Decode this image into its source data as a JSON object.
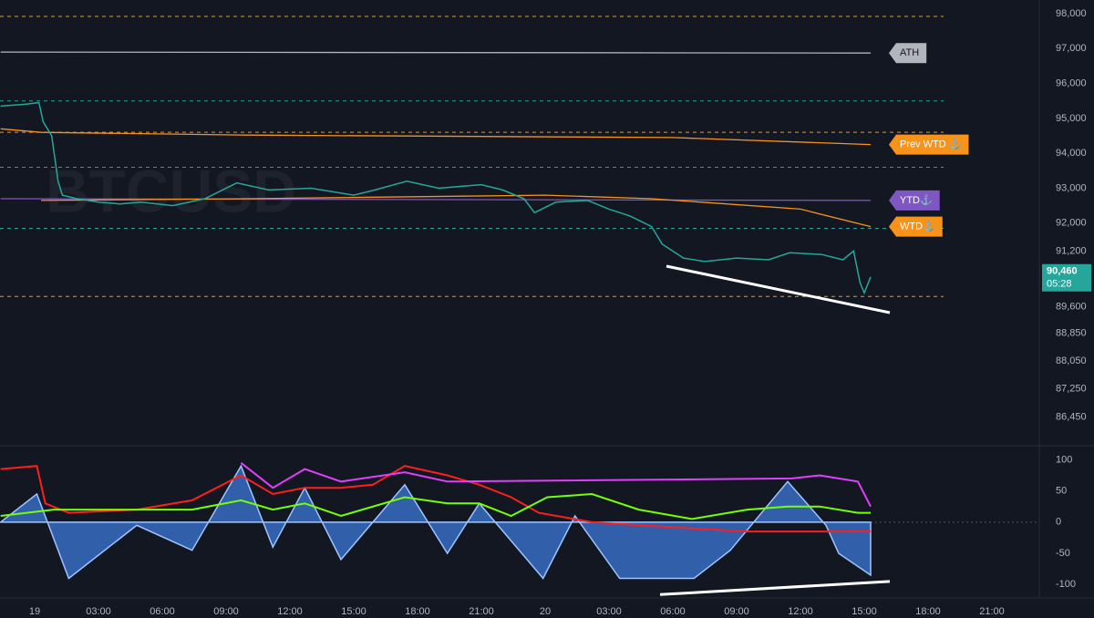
{
  "chart_data": [
    {
      "type": "line",
      "watermark": "BTCUSD",
      "xlim": [
        -1.63,
        47.23
      ],
      "ylim": [
        85650,
        98390
      ],
      "xticks": [
        {
          "value": 0,
          "label": "19"
        },
        {
          "value": 3,
          "label": "03:00"
        },
        {
          "value": 6,
          "label": "06:00"
        },
        {
          "value": 9,
          "label": "09:00"
        },
        {
          "value": 12,
          "label": "12:00"
        },
        {
          "value": 15,
          "label": "15:00"
        },
        {
          "value": 18,
          "label": "18:00"
        },
        {
          "value": 21,
          "label": "21:00"
        },
        {
          "value": 24,
          "label": "20"
        },
        {
          "value": 27,
          "label": "03:00"
        },
        {
          "value": 30,
          "label": "06:00"
        },
        {
          "value": 33,
          "label": "09:00"
        },
        {
          "value": 36,
          "label": "12:00"
        },
        {
          "value": 39,
          "label": "15:00"
        },
        {
          "value": 42,
          "label": "18:00"
        },
        {
          "value": 45,
          "label": "21:00"
        }
      ],
      "yticks": [
        {
          "value": 98000,
          "label": "98,000"
        },
        {
          "value": 97000,
          "label": "97,000"
        },
        {
          "value": 96000,
          "label": "96,000"
        },
        {
          "value": 95000,
          "label": "95,000"
        },
        {
          "value": 94000,
          "label": "94,000"
        },
        {
          "value": 93000,
          "label": "93,000"
        },
        {
          "value": 92000,
          "label": "92,000"
        },
        {
          "value": 91200,
          "label": "91,200"
        },
        {
          "value": 89600,
          "label": "89,600"
        },
        {
          "value": 88850,
          "label": "88,850"
        },
        {
          "value": 88050,
          "label": "88,050"
        },
        {
          "value": 87250,
          "label": "87,250"
        },
        {
          "value": 86450,
          "label": "86,450"
        }
      ],
      "series": [
        {
          "color": "#26a69a",
          "x": [
            -1.6,
            -0.5,
            0.2,
            0.4,
            0.8,
            1.1,
            1.3,
            2,
            3,
            4,
            5,
            6.5,
            8,
            9.5,
            11,
            13,
            15,
            16,
            17.5,
            19,
            21,
            22,
            23,
            23.5,
            24.5,
            26,
            27,
            28,
            29,
            29.5,
            30.5,
            31.5,
            33,
            34.5,
            35.5,
            37,
            38,
            38.5,
            38.8,
            39,
            39.3
          ],
          "values": [
            95350,
            95400,
            95450,
            94900,
            94500,
            93200,
            92800,
            92700,
            92600,
            92550,
            92600,
            92500,
            92700,
            93150,
            92950,
            93000,
            92800,
            92950,
            93200,
            93000,
            93100,
            92950,
            92700,
            92300,
            92600,
            92650,
            92400,
            92200,
            91900,
            91400,
            91000,
            90900,
            91000,
            90950,
            91150,
            91100,
            90950,
            91200,
            90300,
            90000,
            90460
          ]
        }
      ],
      "levels": [
        {
          "value": 97920,
          "color": "#f7931a"
        },
        {
          "value": 95500,
          "color": "#26a69a"
        },
        {
          "value": 94600,
          "color": "#f7931a"
        },
        {
          "value": 93600,
          "color": "#26a69a"
        },
        {
          "value": 91850,
          "color": "#26a69a"
        },
        {
          "value": 89900,
          "color": "#f7931a"
        }
      ],
      "reference_lines": [
        {
          "name": "ATH",
          "color": "#b2b5be",
          "x": [
            -1.6,
            39.3
          ],
          "values": [
            96900,
            96870
          ]
        },
        {
          "name": "Prev WTD ⚓",
          "color": "#f7931a",
          "x": [
            -1.6,
            0.3,
            10,
            30,
            39.3
          ],
          "values": [
            94700,
            94600,
            94520,
            94450,
            94250
          ]
        },
        {
          "name": "YTD⚓",
          "color": "#7e57c2",
          "x": [
            -1.6,
            39.3
          ],
          "values": [
            92700,
            92650
          ]
        },
        {
          "name": "WTD⚓",
          "color": "#f7931a",
          "x": [
            0.3,
            10,
            24,
            29,
            36,
            39.3
          ],
          "values": [
            92650,
            92700,
            92800,
            92700,
            92400,
            91900
          ]
        }
      ],
      "trend_lines": [
        {
          "x": [
            29.7,
            40.2
          ],
          "values": [
            90768,
            89436
          ]
        }
      ],
      "last_price": {
        "value": 90460,
        "label": "90,460"
      },
      "countdown": "05:28"
    },
    {
      "type": "oscillator",
      "xlim": [
        -1.63,
        47.23
      ],
      "ylim": [
        -120,
        121
      ],
      "yticks": [
        100,
        50,
        0,
        -50,
        -100
      ],
      "series": [
        {
          "color": "#3c78d8",
          "fill": true,
          "x": [
            -1.6,
            0.1,
            1.6,
            4.8,
            7.4,
            9.7,
            11.2,
            12.7,
            14.4,
            17.4,
            19.4,
            20.9,
            23.9,
            25.4,
            27.5,
            31,
            32.7,
            35.4,
            37.2,
            37.8,
            39.3
          ],
          "values": [
            0,
            45,
            -90,
            -5,
            -45,
            90,
            -40,
            55,
            -60,
            60,
            -50,
            30,
            -90,
            10,
            -90,
            -90,
            -45,
            65,
            -5,
            -50,
            -85
          ]
        },
        {
          "color": "#ff1e1e",
          "x": [
            -1.6,
            0.1,
            0.5,
            1.6,
            4.8,
            7.4,
            9.7,
            11.2,
            12.7,
            14.4,
            15.9,
            17.4,
            19.4,
            20.9,
            22.4,
            23.7,
            26.2,
            28.4,
            30.9,
            33.5,
            36.9,
            39.3
          ],
          "values": [
            85,
            90,
            30,
            15,
            20,
            35,
            75,
            45,
            55,
            55,
            60,
            90,
            75,
            60,
            40,
            15,
            0,
            -5,
            -10,
            -15,
            -15,
            -15
          ]
        },
        {
          "color": "#76ff03",
          "x": [
            -1.6,
            0.9,
            4.8,
            7.4,
            9.7,
            11.2,
            12.7,
            14.4,
            17.4,
            19.4,
            20.9,
            22.4,
            24.1,
            26.2,
            28.4,
            30.9,
            33.5,
            35.4,
            36.9,
            38.7,
            39.3
          ],
          "values": [
            10,
            20,
            20,
            20,
            35,
            20,
            30,
            10,
            40,
            30,
            30,
            10,
            40,
            45,
            20,
            5,
            20,
            25,
            25,
            15,
            15
          ]
        },
        {
          "color": "#e040fb",
          "x": [
            9.7,
            11.2,
            12.7,
            14.4,
            17.4,
            19.4,
            35.6,
            36.9,
            38.7,
            39.3
          ],
          "values": [
            95,
            55,
            85,
            65,
            80,
            65,
            70,
            75,
            65,
            25
          ]
        }
      ],
      "trend_lines": [
        {
          "x": [
            29.4,
            40.2
          ],
          "values": [
            -116,
            -95
          ]
        }
      ]
    }
  ]
}
